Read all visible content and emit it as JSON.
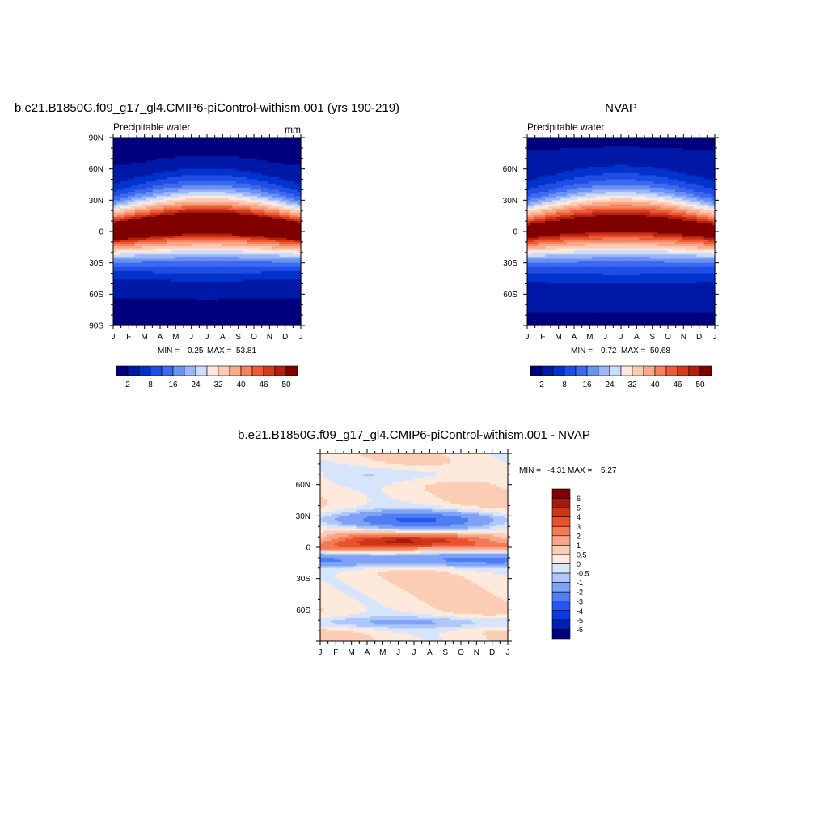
{
  "colors": {
    "abs": [
      "#00007f",
      "#0019a6",
      "#0033cc",
      "#1f4ee6",
      "#3d6af0",
      "#6b91f5",
      "#9bb5f8",
      "#cbdcfc",
      "#fde9dc",
      "#fbcbb6",
      "#f8a98a",
      "#f5835e",
      "#ed5a36",
      "#d63a1b",
      "#b3200f",
      "#800000"
    ],
    "diff": [
      "#00007f",
      "#0020b8",
      "#0a3be0",
      "#2856f0",
      "#4f7ef3",
      "#7ea2f6",
      "#aec6f9",
      "#d6e4fc",
      "#fdeadd",
      "#fbcdb4",
      "#f7a687",
      "#f27a55",
      "#e9512f",
      "#cc3518",
      "#a51a0c",
      "#800000"
    ]
  },
  "chart_data": [
    {
      "type": "heatmap",
      "title": "b.e21.B1850G.f09_g17_gl4.CMIP6-piControl-withism.001 (yrs 190-219)",
      "subtitle_left": "Precipitable water",
      "subtitle_right": "mm",
      "x_tick_labels": [
        "J",
        "F",
        "M",
        "A",
        "M",
        "J",
        "J",
        "A",
        "S",
        "O",
        "N",
        "D",
        "J"
      ],
      "y_tick_labels": [
        "90N",
        "60N",
        "30N",
        "0",
        "30S",
        "60S",
        "90S"
      ],
      "y_tick_values": [
        90,
        60,
        30,
        0,
        -30,
        -60,
        -90
      ],
      "ylim": [
        -90,
        90
      ],
      "min_label": "MIN =",
      "min_value": "0.25",
      "max_label": "MAX =",
      "max_value": "53.81",
      "colorbar_labels": [
        "2",
        "8",
        "16",
        "24",
        "32",
        "40",
        "46",
        "50"
      ]
    },
    {
      "type": "heatmap",
      "title": "NVAP",
      "subtitle_left": "Precipitable water",
      "x_tick_labels": [
        "J",
        "F",
        "M",
        "A",
        "M",
        "J",
        "J",
        "A",
        "S",
        "O",
        "N",
        "D",
        "J"
      ],
      "y_tick_labels": [
        "60N",
        "30N",
        "0",
        "30S",
        "60S"
      ],
      "y_tick_values": [
        60,
        30,
        0,
        -30,
        -60
      ],
      "ylim": [
        -90,
        90
      ],
      "min_label": "MIN =",
      "min_value": "0.72",
      "max_label": "MAX =",
      "max_value": "50.68",
      "colorbar_labels": [
        "2",
        "8",
        "16",
        "24",
        "32",
        "40",
        "46",
        "50"
      ]
    },
    {
      "type": "heatmap",
      "title": "b.e21.B1850G.f09_g17_gl4.CMIP6-piControl-withism.001 - NVAP",
      "x_tick_labels": [
        "J",
        "F",
        "M",
        "A",
        "M",
        "J",
        "J",
        "A",
        "S",
        "O",
        "N",
        "D",
        "J"
      ],
      "y_tick_labels": [
        "60N",
        "30N",
        "0",
        "30S",
        "60S"
      ],
      "y_tick_values": [
        60,
        30,
        0,
        -30,
        -60
      ],
      "ylim": [
        -90,
        90
      ],
      "min_label": "MIN =",
      "min_value": "-4.31",
      "max_label": "MAX =",
      "max_value": "5.27",
      "colorbar_labels": [
        "6",
        "5",
        "4",
        "3",
        "2",
        "1",
        "0.5",
        "0",
        "-0.5",
        "-1",
        "-2",
        "-3",
        "-4",
        "-5",
        "-6"
      ]
    }
  ]
}
